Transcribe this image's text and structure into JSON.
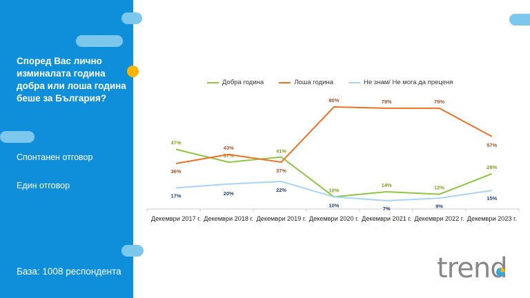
{
  "sidebar": {
    "question": "Според Вас лично изминалата година добра или лоша година беше за България?",
    "note1": "Спонтанен отговор",
    "note2": "Един отговор",
    "base": "База:  1008 респондента"
  },
  "logo": "trend",
  "chart_data": {
    "type": "line",
    "categories": [
      "Декември 2017 г.",
      "Декември 2018 г.",
      "Декември 2019 г.",
      "Декември 2020 г.",
      "Декември 2021 г.",
      "Декември 2022 г.",
      "Декември 2023 г."
    ],
    "ylim": [
      0,
      100
    ],
    "series": [
      {
        "name": "Добра година",
        "color": "#8cc63f",
        "label_color": "#8a9a1e",
        "values": [
          47,
          37,
          41,
          10,
          14,
          12,
          28
        ]
      },
      {
        "name": "Лоша година",
        "color": "#f26f21",
        "label_color": "#a5502a",
        "values": [
          36,
          43,
          37,
          80,
          79,
          79,
          57
        ]
      },
      {
        "name": "Не знам/ Не мога да преценя",
        "color": "#a6d3f7",
        "label_color": "#1f3f6e",
        "values": [
          17,
          20,
          22,
          10,
          7,
          9,
          15
        ]
      }
    ],
    "legend": "top"
  }
}
